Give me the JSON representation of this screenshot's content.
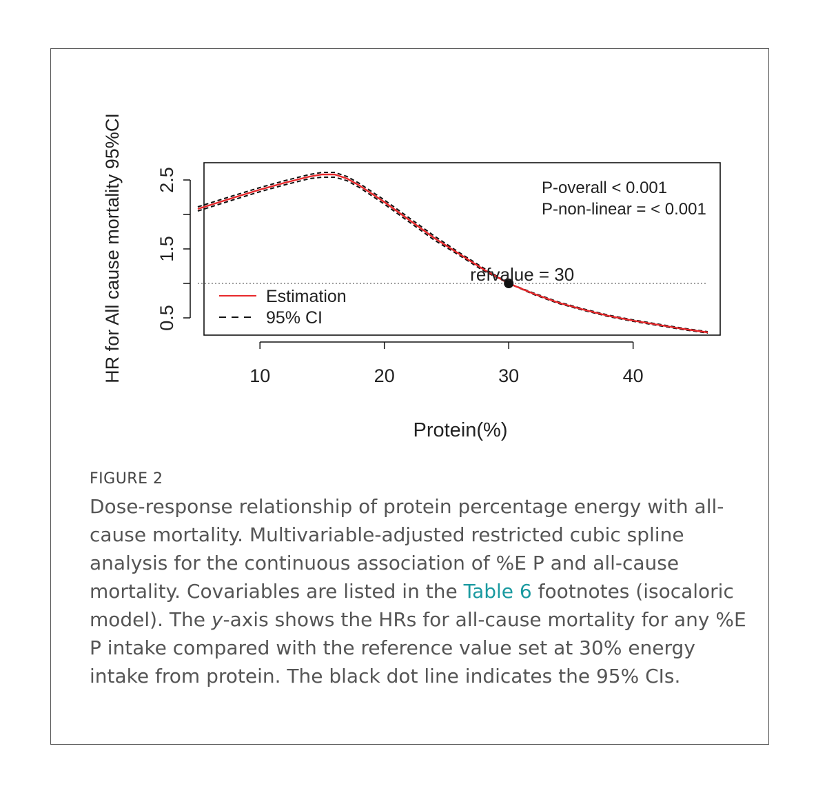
{
  "chart_data": {
    "type": "line",
    "xlabel": "Protein(%)",
    "ylabel": "HR for All cause mortality 95%CI",
    "xlim": [
      5.5,
      47
    ],
    "ylim": [
      0.25,
      2.75
    ],
    "xticks": [
      10,
      20,
      30,
      40
    ],
    "yticks": [
      0.5,
      1.0,
      1.5,
      2.0,
      2.5
    ],
    "ytick_labels": [
      "0.5",
      "",
      "1.5",
      "",
      "2.5"
    ],
    "reference_line": {
      "y": 1.0,
      "style": "dotted"
    },
    "reference_point": {
      "x": 30,
      "y": 1.0,
      "label": "refvalue = 30"
    },
    "annotations": [
      "P-overall < 0.001",
      "P-non-linear = < 0.001"
    ],
    "legend": {
      "position": "bottom-left",
      "entries": [
        "Estimation",
        "95% CI"
      ]
    },
    "series": [
      {
        "name": "Estimation",
        "color": "#e8282b",
        "style": "solid",
        "x": [
          5,
          8,
          10,
          12,
          14,
          15,
          16,
          17,
          18,
          20,
          22,
          24,
          26,
          28,
          30,
          32,
          34,
          36,
          38,
          40,
          42,
          44,
          46
        ],
        "y": [
          2.08,
          2.25,
          2.36,
          2.46,
          2.55,
          2.58,
          2.58,
          2.52,
          2.42,
          2.18,
          1.92,
          1.66,
          1.43,
          1.2,
          1.0,
          0.85,
          0.72,
          0.62,
          0.53,
          0.46,
          0.4,
          0.34,
          0.29
        ]
      },
      {
        "name": "95% CI",
        "color": "#111111",
        "style": "dashed",
        "x": [
          5,
          8,
          10,
          12,
          14,
          15,
          16,
          17,
          18,
          20,
          22,
          24,
          26,
          28,
          30,
          32,
          34,
          36,
          38,
          40,
          42,
          44,
          46
        ],
        "y": [
          2.11,
          2.28,
          2.39,
          2.49,
          2.58,
          2.61,
          2.61,
          2.55,
          2.45,
          2.21,
          1.95,
          1.69,
          1.45,
          1.22,
          1.0,
          0.86,
          0.73,
          0.63,
          0.54,
          0.47,
          0.41,
          0.35,
          0.3
        ]
      },
      {
        "name": "95% CI",
        "color": "#111111",
        "style": "dashed",
        "x": [
          5,
          8,
          10,
          12,
          14,
          15,
          16,
          17,
          18,
          20,
          22,
          24,
          26,
          28,
          30,
          32,
          34,
          36,
          38,
          40,
          42,
          44,
          46
        ],
        "y": [
          2.05,
          2.22,
          2.33,
          2.43,
          2.52,
          2.54,
          2.54,
          2.49,
          2.39,
          2.15,
          1.89,
          1.63,
          1.41,
          1.18,
          1.0,
          0.84,
          0.71,
          0.61,
          0.52,
          0.45,
          0.39,
          0.33,
          0.28
        ]
      }
    ]
  },
  "caption": {
    "label": "FIGURE 2",
    "text_before_link": "Dose-response relationship of protein percentage energy with all-cause mortality. Multivariable-adjusted restricted cubic spline analysis for the continuous association of %E P and all-cause mortality. Covariables are listed in the ",
    "link_text": "Table 6",
    "text_after_link": " footnotes (isocaloric model). The ",
    "italic_text": "y",
    "text_end": "-axis shows the HRs for all-cause mortality for any %E P intake compared with the reference value set at 30% energy intake from protein. The black dot line indicates the 95% CIs."
  }
}
